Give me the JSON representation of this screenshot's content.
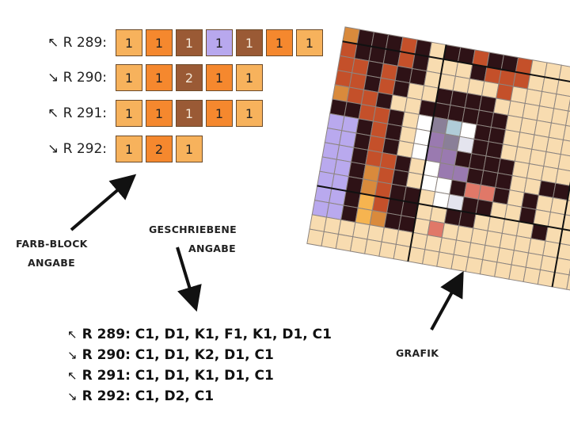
{
  "colors": {
    "C": "#f7b25c",
    "D": "#f5882e",
    "K": "#9a5a35",
    "F": "#b8a8ee"
  },
  "block_rows": [
    {
      "label": "↖ R 289:",
      "cells": [
        {
          "c": "C",
          "n": "1"
        },
        {
          "c": "D",
          "n": "1"
        },
        {
          "c": "K",
          "n": "1"
        },
        {
          "c": "F",
          "n": "1"
        },
        {
          "c": "K",
          "n": "1"
        },
        {
          "c": "D",
          "n": "1"
        },
        {
          "c": "C",
          "n": "1"
        }
      ]
    },
    {
      "label": "↘ R 290:",
      "cells": [
        {
          "c": "C",
          "n": "1"
        },
        {
          "c": "D",
          "n": "1"
        },
        {
          "c": "K",
          "n": "2"
        },
        {
          "c": "D",
          "n": "1"
        },
        {
          "c": "C",
          "n": "1"
        }
      ]
    },
    {
      "label": "↖ R 291:",
      "cells": [
        {
          "c": "C",
          "n": "1"
        },
        {
          "c": "D",
          "n": "1"
        },
        {
          "c": "K",
          "n": "1"
        },
        {
          "c": "D",
          "n": "1"
        },
        {
          "c": "C",
          "n": "1"
        }
      ]
    },
    {
      "label": "↘ R 292:",
      "cells": [
        {
          "c": "C",
          "n": "1"
        },
        {
          "c": "D",
          "n": "2"
        },
        {
          "c": "C",
          "n": "1"
        }
      ]
    }
  ],
  "labels": {
    "farb_block_1": "FARB-BLOCK",
    "farb_block_2": "ANGABE",
    "geschriebene_1": "GESCHRIEBENE",
    "geschriebene_2": "ANGABE",
    "grafik": "GRAFIK"
  },
  "written": [
    {
      "arrow": "↖",
      "text": "R 289: C1, D1, K1, F1, K1, D1, C1"
    },
    {
      "arrow": "↘",
      "text": "R 290: C1, D1, K2, D1, C1"
    },
    {
      "arrow": "↖",
      "text": "R 291: C1, D1, K1, D1, C1"
    },
    {
      "arrow": "↘",
      "text": "R 292: C1, D2, C1"
    }
  ],
  "grafik": {
    "palette": {
      "B": "#2e1216",
      "R": "#c4502a",
      "C": "#f8dcb0",
      "L": "#b9a9ee",
      "W": "#ffffff",
      "G": "#8a7f98",
      "P": "#9a7ab0",
      "T": "#b0ccd8",
      "S": "#e07868",
      "O": "#d98a3c",
      "Y": "#f6b450",
      "E": "#e4e4ee"
    },
    "rows": [
      "OBBBRBCBBRBBRCCCCCCC",
      "RBBBRBCCCBRRRCCCCCCC",
      "RRBRBBCCCCCRCCCCCCCC",
      "RRBRBCCBBBBCCCCCCCCC",
      "ORRBCCBBBBBBCCCCCCCC",
      "BBRRBCWGTWBBCCCCCCCC",
      "LLBRBCWPGEBBCCCCCCCC",
      "LLBRBCWPPBBBBCCCCCCC",
      "LLBRRBCWPPBBBCCBBCCC",
      "LLBORBCWWBSSBCBCCCCC",
      "LLBORBBCWEBBCCBCCCCC",
      "LLBYRBBCCBBCCCCBCCCC",
      "LLBYOBBCSCCCCCCCCCCC",
      "CCCCCCCCCCCCCCCCCCCC",
      "CCCCCCCCCCCCCCCCCCCC"
    ]
  }
}
